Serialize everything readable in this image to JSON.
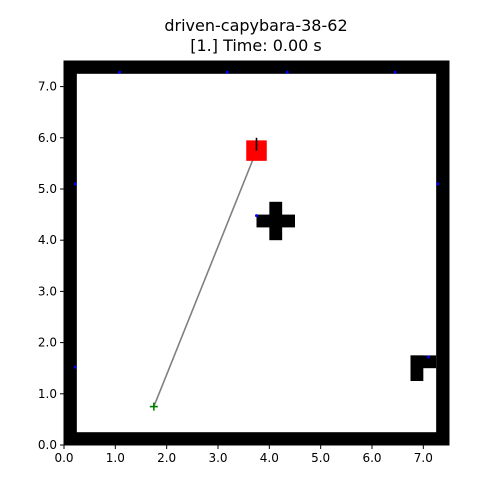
{
  "title": {
    "line1": "driven-capybara-38-62",
    "line2": "[1.] Time: 0.00 s"
  },
  "colors": {
    "wall": "#000000",
    "floor": "#ffffff",
    "agent": "#ff0000",
    "path": "#808080",
    "goal": "#008000",
    "marker": "#0000ff"
  },
  "chart_data": {
    "type": "scatter",
    "xlim": [
      0,
      7.5
    ],
    "ylim": [
      0,
      7.5
    ],
    "x_ticks": [
      "0.0",
      "1.0",
      "2.0",
      "3.0",
      "4.0",
      "5.0",
      "6.0",
      "7.0"
    ],
    "y_ticks": [
      "0.0",
      "1.0",
      "2.0",
      "3.0",
      "4.0",
      "5.0",
      "6.0",
      "7.0"
    ],
    "walls": [
      {
        "x": 0,
        "y": 0,
        "w": 7.5,
        "h": 0.25
      },
      {
        "x": 0,
        "y": 7.25,
        "w": 7.5,
        "h": 0.25
      },
      {
        "x": 0,
        "y": 0,
        "w": 0.25,
        "h": 7.5
      },
      {
        "x": 7.25,
        "y": 0,
        "w": 0.25,
        "h": 7.5
      }
    ],
    "obstacles": [
      {
        "x": 3.75,
        "y": 4.25,
        "w": 0.75,
        "h": 0.25
      },
      {
        "x": 4.0,
        "y": 4.0,
        "w": 0.25,
        "h": 0.75
      },
      {
        "x": 6.75,
        "y": 1.5,
        "w": 0.5,
        "h": 0.25
      },
      {
        "x": 6.75,
        "y": 1.25,
        "w": 0.25,
        "h": 0.5
      }
    ],
    "agent": {
      "x": 3.75,
      "y": 5.75,
      "size": 0.4,
      "heading_deg": 90
    },
    "path": [
      [
        1.75,
        0.75
      ],
      [
        3.75,
        5.75
      ]
    ],
    "goal": {
      "x": 1.75,
      "y": 0.75
    },
    "markers": [
      [
        1.08,
        7.28
      ],
      [
        3.18,
        7.28
      ],
      [
        4.35,
        7.28
      ],
      [
        6.45,
        7.28
      ],
      [
        0.22,
        5.1
      ],
      [
        7.28,
        5.1
      ],
      [
        0.22,
        1.52
      ],
      [
        7.1,
        1.72
      ],
      [
        3.75,
        4.48
      ]
    ]
  }
}
